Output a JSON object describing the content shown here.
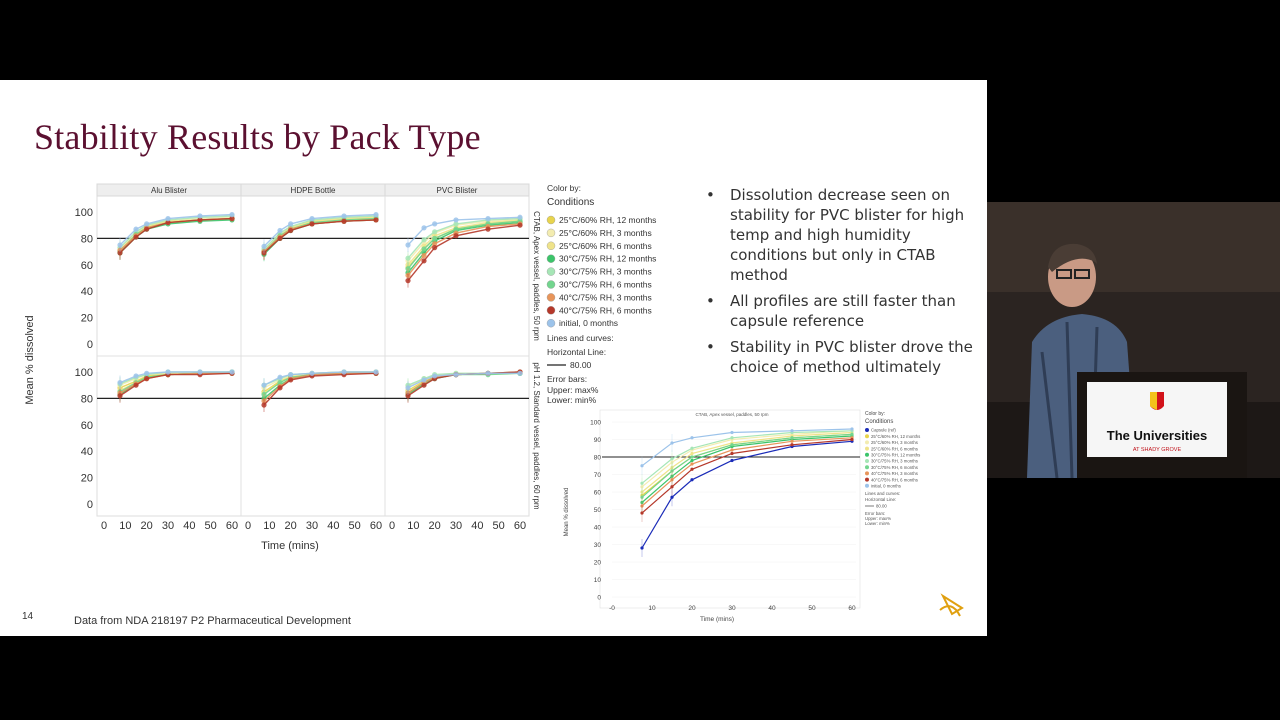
{
  "slide": {
    "title": "Stability Results by Pack Type",
    "bullets": [
      "Dissolution decrease seen on stability for PVC blister for high temp and high humidity conditions but only in CTAB method",
      "All profiles are still faster than capsule reference",
      "Stability in PVC blister drove the choice of method ultimately"
    ],
    "footnote": "Data from NDA 218197 P2 Pharmaceutical Development",
    "page_number": "14"
  },
  "video": {
    "podium_label": "The Universities",
    "podium_sublabel": "AT SHADY GROVE"
  },
  "chart_data": [
    {
      "type": "line",
      "panels": [
        "Alu Blister",
        "HDPE Bottle",
        "PVC Blister"
      ],
      "row_labels": [
        "CTAB, Apex vessel, paddles, 50 rpm",
        "pH 1.2, Standard vessel, paddles, 60 rpm"
      ],
      "xlabel": "Time (mins)",
      "ylabel": "Mean % dissolved",
      "x_ticks": [
        "0",
        "10",
        "20",
        "30",
        "40",
        "50",
        "60"
      ],
      "y_ticks": [
        "0",
        "20",
        "40",
        "60",
        "80",
        "100"
      ],
      "xlim": [
        0,
        60
      ],
      "ylim": [
        0,
        105
      ],
      "x": [
        7.5,
        15,
        20,
        30,
        45,
        60
      ],
      "horizontal_line": 80,
      "legend": {
        "title": "Color by:",
        "subtitle": "Conditions",
        "lines_title": "Lines and curves:",
        "hline_title": "Horizontal Line:",
        "hline_value": "80.00",
        "errorbars_title": "Error bars:",
        "upper": "Upper: max%",
        "lower": "Lower: min%"
      },
      "series": [
        {
          "name": "25°C/60% RH, 12 months",
          "color": "#e8d44d"
        },
        {
          "name": "25°C/60% RH, 3 months",
          "color": "#f3ecb0"
        },
        {
          "name": "25°C/60% RH, 6 months",
          "color": "#efe38a"
        },
        {
          "name": "30°C/75% RH, 12 months",
          "color": "#3cc46a"
        },
        {
          "name": "30°C/75% RH, 3 months",
          "color": "#a6e6b6"
        },
        {
          "name": "30°C/75% RH, 6 months",
          "color": "#72d58e"
        },
        {
          "name": "40°C/75% RH, 3 months",
          "color": "#e8955a"
        },
        {
          "name": "40°C/75% RH, 6 months",
          "color": "#b5382a"
        },
        {
          "name": "initial, 0 months",
          "color": "#9cc3ea"
        }
      ],
      "values": {
        "CTAB": {
          "Alu Blister": [
            [
              70,
              82,
              88,
              92,
              94,
              95
            ],
            [
              72,
              84,
              89,
              93,
              95,
              96
            ],
            [
              71,
              83,
              89,
              93,
              94,
              95
            ],
            [
              69,
              81,
              87,
              91,
              93,
              94
            ],
            [
              73,
              85,
              90,
              94,
              96,
              97
            ],
            [
              70,
              83,
              88,
              92,
              94,
              95
            ],
            [
              71,
              82,
              88,
              92,
              94,
              95
            ],
            [
              69,
              81,
              87,
              92,
              94,
              95
            ],
            [
              75,
              87,
              91,
              95,
              97,
              98
            ]
          ],
          "HDPE Bottle": [
            [
              69,
              81,
              87,
              92,
              94,
              95
            ],
            [
              71,
              83,
              88,
              93,
              95,
              96
            ],
            [
              70,
              82,
              88,
              93,
              95,
              96
            ],
            [
              68,
              80,
              86,
              91,
              93,
              94
            ],
            [
              72,
              84,
              89,
              94,
              96,
              97
            ],
            [
              70,
              82,
              87,
              92,
              94,
              95
            ],
            [
              70,
              81,
              87,
              91,
              93,
              94
            ],
            [
              69,
              80,
              86,
              91,
              93,
              94
            ],
            [
              74,
              86,
              91,
              95,
              97,
              98
            ]
          ],
          "PVC Blister": [
            [
              58,
              72,
              80,
              87,
              91,
              93
            ],
            [
              63,
              77,
              84,
              90,
              93,
              95
            ],
            [
              60,
              74,
              82,
              88,
              92,
              94
            ],
            [
              54,
              69,
              78,
              86,
              90,
              92
            ],
            [
              65,
              79,
              85,
              91,
              94,
              95
            ],
            [
              57,
              72,
              80,
              87,
              91,
              93
            ],
            [
              52,
              67,
              76,
              84,
              89,
              91
            ],
            [
              48,
              63,
              73,
              82,
              87,
              90
            ],
            [
              75,
              88,
              91,
              94,
              95,
              96
            ]
          ]
        },
        "pH 1.2": {
          "Alu Blister": [
            [
              88,
              93,
              97,
              99,
              99,
              100
            ],
            [
              90,
              95,
              98,
              99,
              100,
              100
            ],
            [
              86,
              92,
              96,
              98,
              99,
              99
            ],
            [
              83,
              91,
              96,
              98,
              99,
              100
            ],
            [
              91,
              96,
              98,
              100,
              100,
              100
            ],
            [
              85,
              92,
              96,
              98,
              99,
              99
            ],
            [
              84,
              91,
              95,
              98,
              99,
              99
            ],
            [
              82,
              90,
              95,
              98,
              98,
              99
            ],
            [
              92,
              97,
              99,
              100,
              100,
              100
            ]
          ],
          "HDPE Bottle": [
            [
              85,
              93,
              97,
              99,
              100,
              100
            ],
            [
              88,
              94,
              97,
              99,
              100,
              100
            ],
            [
              84,
              92,
              96,
              98,
              99,
              100
            ],
            [
              80,
              90,
              95,
              98,
              99,
              99
            ],
            [
              90,
              95,
              98,
              99,
              100,
              100
            ],
            [
              83,
              92,
              96,
              98,
              99,
              99
            ],
            [
              78,
              89,
              95,
              98,
              99,
              99
            ],
            [
              75,
              88,
              94,
              97,
              98,
              99
            ],
            [
              90,
              96,
              98,
              99,
              100,
              100
            ]
          ],
          "PVC Blister": [
            [
              86,
              93,
              96,
              98,
              99,
              99
            ],
            [
              89,
              95,
              97,
              99,
              99,
              100
            ],
            [
              85,
              92,
              96,
              98,
              99,
              99
            ],
            [
              83,
              91,
              95,
              98,
              99,
              99
            ],
            [
              90,
              95,
              98,
              99,
              99,
              100
            ],
            [
              84,
              92,
              96,
              98,
              98,
              99
            ],
            [
              84,
              92,
              96,
              98,
              99,
              100
            ],
            [
              82,
              90,
              95,
              98,
              99,
              100
            ],
            [
              88,
              94,
              97,
              98,
              99,
              99
            ]
          ]
        }
      }
    },
    {
      "type": "line",
      "title": "CTAB, Apex vessel, paddles, 50 rpm",
      "xlabel": "Time (mins)",
      "ylabel": "Mean % dissolved",
      "x_ticks": [
        "-0",
        "10",
        "20",
        "30",
        "40",
        "50",
        "60"
      ],
      "y_ticks": [
        "0",
        "10",
        "20",
        "30",
        "40",
        "50",
        "60",
        "70",
        "80",
        "90",
        "100"
      ],
      "xlim": [
        0,
        60
      ],
      "ylim": [
        0,
        100
      ],
      "x": [
        7.5,
        15,
        20,
        30,
        45,
        60
      ],
      "horizontal_line": 80,
      "legend": {
        "title": "Color by:",
        "subtitle": "Conditions",
        "lines_title": "Lines and curves:",
        "hline_title": "Horizontal Line:",
        "hline_value": "80.00",
        "errorbars_title": "Error bars:",
        "upper": "Upper: max%",
        "lower": "Lower: min%"
      },
      "series": [
        {
          "name": "Capsule (ref)",
          "color": "#1a2bb8",
          "values": [
            28,
            57,
            67,
            78,
            86,
            89
          ]
        },
        {
          "name": "25°C/60% RH, 12 months",
          "color": "#e8d44d",
          "values": [
            58,
            72,
            80,
            87,
            91,
            93
          ]
        },
        {
          "name": "25°C/60% RH, 3 months",
          "color": "#f3ecb0",
          "values": [
            63,
            77,
            84,
            90,
            93,
            95
          ]
        },
        {
          "name": "25°C/60% RH, 6 months",
          "color": "#efe38a",
          "values": [
            60,
            74,
            82,
            88,
            92,
            94
          ]
        },
        {
          "name": "30°C/75% RH, 12 months",
          "color": "#3cc46a",
          "values": [
            54,
            69,
            78,
            86,
            90,
            92
          ]
        },
        {
          "name": "30°C/75% RH, 3 months",
          "color": "#a6e6b6",
          "values": [
            65,
            79,
            85,
            91,
            94,
            95
          ]
        },
        {
          "name": "30°C/75% RH, 6 months",
          "color": "#72d58e",
          "values": [
            57,
            72,
            80,
            87,
            91,
            93
          ]
        },
        {
          "name": "40°C/75% RH, 3 months",
          "color": "#e8955a",
          "values": [
            52,
            67,
            76,
            84,
            89,
            91
          ]
        },
        {
          "name": "40°C/75% RH, 6 months",
          "color": "#b5382a",
          "values": [
            48,
            63,
            73,
            82,
            87,
            90
          ]
        },
        {
          "name": "initial, 0 months",
          "color": "#9cc3ea",
          "values": [
            75,
            88,
            91,
            94,
            95,
            96
          ]
        }
      ]
    }
  ]
}
